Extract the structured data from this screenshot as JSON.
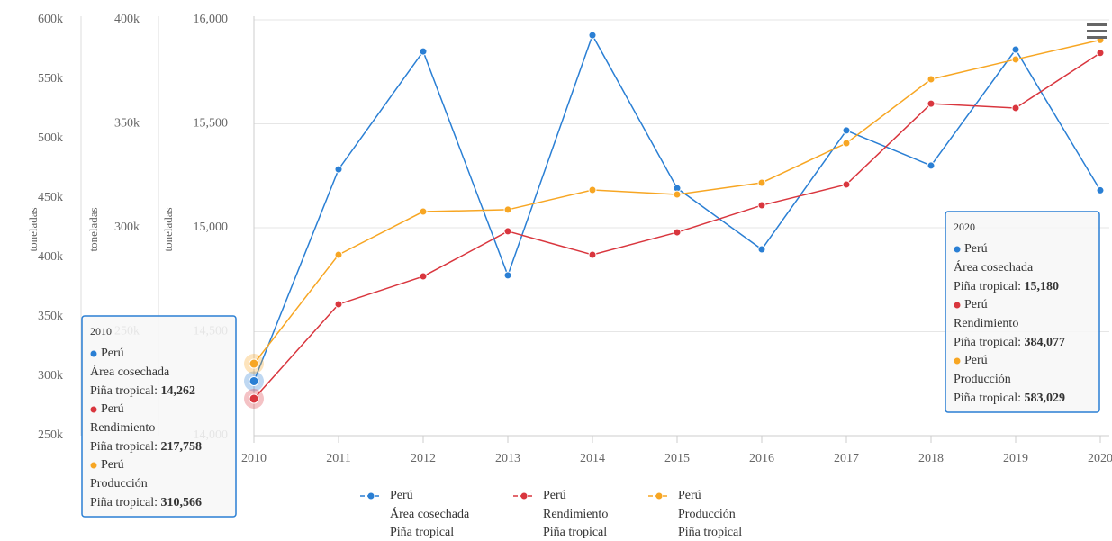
{
  "chart_data": {
    "type": "line",
    "categories": [
      "2010",
      "2011",
      "2012",
      "2013",
      "2014",
      "2015",
      "2016",
      "2017",
      "2018",
      "2019",
      "2020"
    ],
    "ylabel": "toneladas",
    "ylim": [
      250000,
      600000
    ],
    "yticks": [
      {
        "value": 250000,
        "label": "250k"
      },
      {
        "value": 300000,
        "label": "300k"
      },
      {
        "value": 350000,
        "label": "350k"
      },
      {
        "value": 400000,
        "label": "400k"
      },
      {
        "value": 450000,
        "label": "450k"
      },
      {
        "value": 500000,
        "label": "500k"
      },
      {
        "value": 550000,
        "label": "550k"
      },
      {
        "value": 600000,
        "label": "600k"
      }
    ],
    "y2label": "toneladas",
    "y2lim": [
      200000,
      400000
    ],
    "y2ticks": [
      {
        "value": 250000,
        "label": "250k"
      },
      {
        "value": 300000,
        "label": "300k"
      },
      {
        "value": 350000,
        "label": "350k"
      },
      {
        "value": 400000,
        "label": "400k"
      }
    ],
    "y3label": "toneladas",
    "y3lim": [
      14000,
      16000
    ],
    "y3ticks": [
      {
        "value": 14000,
        "label": "14,000"
      },
      {
        "value": 14500,
        "label": "14,500"
      },
      {
        "value": 15000,
        "label": "15,000"
      },
      {
        "value": 15500,
        "label": "15,500"
      },
      {
        "value": 16000,
        "label": "16,000"
      }
    ],
    "grid": true,
    "legend": "bottom",
    "series": [
      {
        "name": "Perú",
        "measure": "Área cosechada",
        "product": "Piña tropical",
        "color": "#2a7fd4",
        "axis": "y3",
        "values": [
          14262,
          15281,
          15848,
          14771,
          15926,
          15190,
          14896,
          15468,
          15299,
          15857,
          15180
        ],
        "value_labels": [
          "14,262",
          null,
          null,
          null,
          null,
          null,
          null,
          null,
          null,
          null,
          "15,180"
        ]
      },
      {
        "name": "Perú",
        "measure": "Rendimiento",
        "product": "Piña tropical",
        "color": "#d9363e",
        "axis": "y2",
        "values": [
          217758,
          263200,
          276600,
          298300,
          287000,
          297800,
          310800,
          320800,
          359700,
          357600,
          384077
        ],
        "value_labels": [
          "217,758",
          null,
          null,
          null,
          null,
          null,
          null,
          null,
          null,
          null,
          "384,077"
        ]
      },
      {
        "name": "Perú",
        "measure": "Producción",
        "product": "Piña tropical",
        "color": "#f7a623",
        "axis": "y",
        "values": [
          310566,
          402300,
          438600,
          440200,
          456800,
          453000,
          462900,
          496200,
          550000,
          566700,
          583029
        ],
        "value_labels": [
          "310,566",
          null,
          null,
          null,
          null,
          null,
          null,
          null,
          null,
          null,
          "583,029"
        ]
      }
    ],
    "tooltips": [
      0,
      10
    ]
  }
}
